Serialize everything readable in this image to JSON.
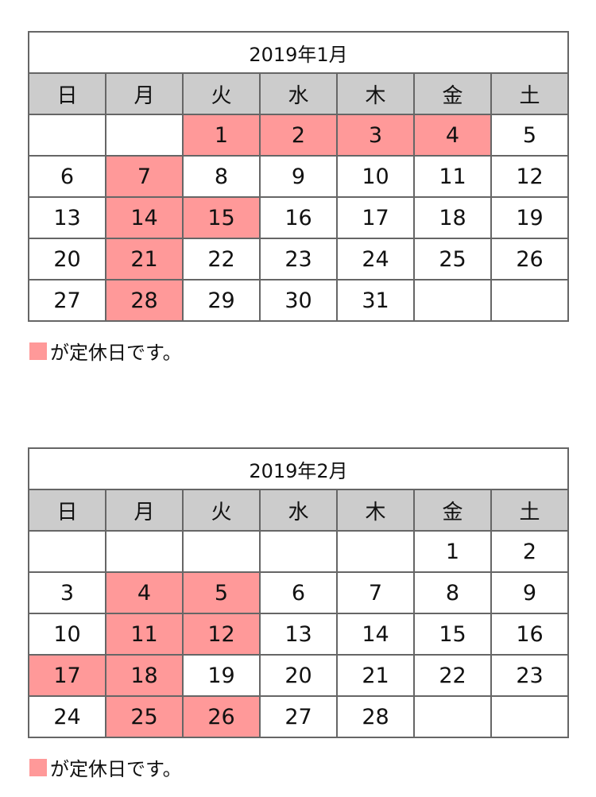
{
  "colors": {
    "holiday": "#ff9999",
    "header": "#cccccc",
    "border": "#666666"
  },
  "weekdays": [
    "日",
    "月",
    "火",
    "水",
    "木",
    "金",
    "土"
  ],
  "legend_text": "が定休日です。",
  "calendars": [
    {
      "title": "2019年1月",
      "weeks": [
        [
          "",
          "",
          "1",
          "2",
          "3",
          "4",
          "5"
        ],
        [
          "6",
          "7",
          "8",
          "9",
          "10",
          "11",
          "12"
        ],
        [
          "13",
          "14",
          "15",
          "16",
          "17",
          "18",
          "19"
        ],
        [
          "20",
          "21",
          "22",
          "23",
          "24",
          "25",
          "26"
        ],
        [
          "27",
          "28",
          "29",
          "30",
          "31",
          "",
          ""
        ]
      ],
      "holidays": [
        "1",
        "2",
        "3",
        "4",
        "7",
        "14",
        "15",
        "21",
        "28"
      ]
    },
    {
      "title": "2019年2月",
      "weeks": [
        [
          "",
          "",
          "",
          "",
          "",
          "1",
          "2"
        ],
        [
          "3",
          "4",
          "5",
          "6",
          "7",
          "8",
          "9"
        ],
        [
          "10",
          "11",
          "12",
          "13",
          "14",
          "15",
          "16"
        ],
        [
          "17",
          "18",
          "19",
          "20",
          "21",
          "22",
          "23"
        ],
        [
          "24",
          "25",
          "26",
          "27",
          "28",
          "",
          ""
        ]
      ],
      "holidays": [
        "4",
        "5",
        "11",
        "12",
        "17",
        "18",
        "25",
        "26"
      ]
    }
  ]
}
